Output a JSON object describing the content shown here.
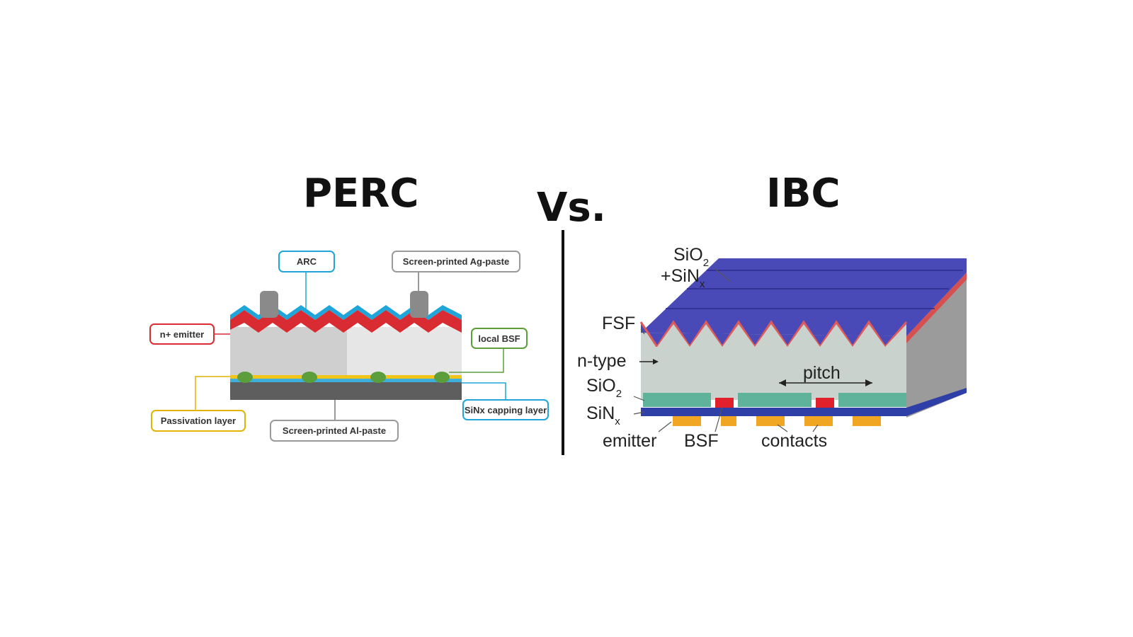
{
  "titles": {
    "left": "PERC",
    "middle": "Vs.",
    "right": "IBC"
  },
  "perc": {
    "labels": {
      "arc": "ARC",
      "ag_paste": "Screen-printed Ag-paste",
      "n_emitter": "n+ emitter",
      "local_bsf": "local BSF",
      "sinx_capping": "SiNx capping layer",
      "passivation": "Passivation layer",
      "al_paste": "Screen-printed Al-paste"
    },
    "colors": {
      "arc": "#1fa5d8",
      "emitter": "#d92b32",
      "bulk": "#d3d3d3",
      "passivation": "#f0c419",
      "capping": "#3fb0de",
      "al_paste": "#5e5e5e",
      "bsf": "#5c9e3c",
      "finger": "#8a8a8a"
    }
  },
  "ibc": {
    "labels": {
      "sio2_top": "SiO",
      "sio2_top_sub": "2",
      "sinx_top": "+SiN",
      "sinx_top_sub": "x",
      "fsf": "FSF",
      "n_type": "n-type",
      "sio2": "SiO",
      "sio2_sub": "2",
      "sinx": "SiN",
      "sinx_sub": "x",
      "emitter": "emitter",
      "bsf": "BSF",
      "contacts": "contacts",
      "pitch": "pitch"
    },
    "colors": {
      "pyramids": "#4a49b8",
      "fsf": "#e05a5a",
      "bulk": "#c9d2cd",
      "sio2": "#5fb39a",
      "sinx": "#2f3fa8",
      "bsf": "#e0202a",
      "contacts": "#f0a623"
    }
  }
}
